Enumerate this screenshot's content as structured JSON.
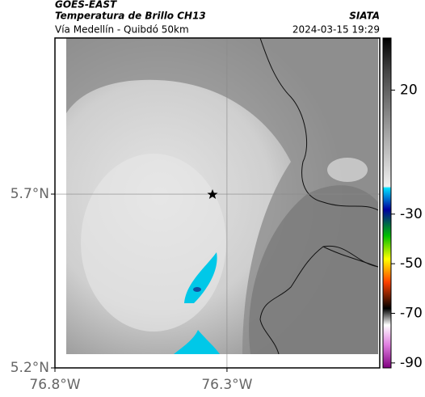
{
  "header": {
    "title": "GOES-EAST",
    "subtitle": "Temperatura de Brillo CH13",
    "route": "Vía Medellín - Quibdó 50km",
    "source": "SIATA",
    "timestamp": "2024-03-15 19:29"
  },
  "map": {
    "xlim": [
      -76.8,
      -75.856
    ],
    "ylim": [
      5.2,
      6.149
    ],
    "xticks": [
      {
        "value": -76.8,
        "label": "76.8°W"
      },
      {
        "value": -76.3,
        "label": "76.3°W"
      }
    ],
    "yticks": [
      {
        "value": 5.2,
        "label": "5.2°N"
      },
      {
        "value": 5.7,
        "label": "5.7°N"
      }
    ]
  },
  "colorbar": {
    "lim": [
      -92,
      41
    ],
    "ticks": [
      20,
      -30,
      -50,
      -70,
      -90
    ]
  }
}
